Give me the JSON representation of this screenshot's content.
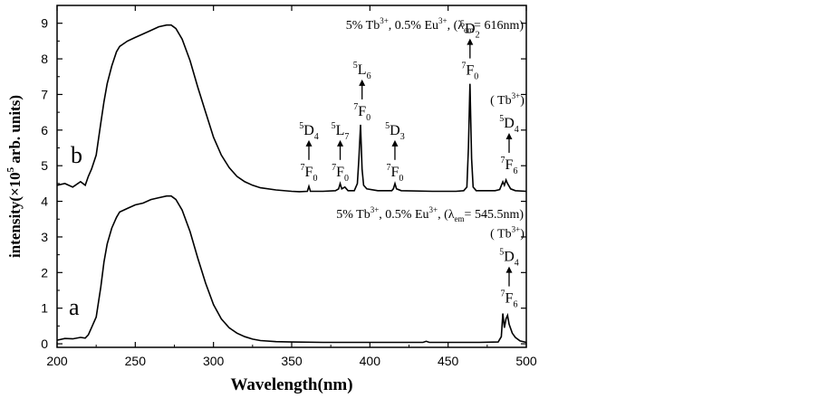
{
  "chart_data": {
    "type": "line",
    "title": "",
    "xlabel": "Wavelength(nm)",
    "ylabel_parts": [
      "intensity(×10",
      "5",
      " arb. units)"
    ],
    "xlim": [
      200,
      500
    ],
    "ylim": [
      -0.1,
      9.5
    ],
    "x_ticks": [
      200,
      250,
      300,
      350,
      400,
      450,
      500
    ],
    "y_ticks": [
      0,
      1,
      2,
      3,
      4,
      5,
      6,
      7,
      8,
      9
    ],
    "series": [
      {
        "name": "a",
        "label": "a",
        "note_parts": [
          "5% Tb",
          "3+",
          ", 0.5% Eu",
          "3+",
          ", (λ",
          "em",
          "= 545.5nm)"
        ],
        "points": [
          [
            200,
            0.1
          ],
          [
            205,
            0.15
          ],
          [
            210,
            0.14
          ],
          [
            215,
            0.18
          ],
          [
            218,
            0.16
          ],
          [
            220,
            0.25
          ],
          [
            222,
            0.45
          ],
          [
            225,
            0.75
          ],
          [
            228,
            1.6
          ],
          [
            230,
            2.3
          ],
          [
            232,
            2.8
          ],
          [
            235,
            3.25
          ],
          [
            238,
            3.55
          ],
          [
            240,
            3.7
          ],
          [
            245,
            3.8
          ],
          [
            250,
            3.9
          ],
          [
            255,
            3.95
          ],
          [
            260,
            4.05
          ],
          [
            265,
            4.1
          ],
          [
            270,
            4.15
          ],
          [
            273,
            4.15
          ],
          [
            276,
            4.05
          ],
          [
            280,
            3.75
          ],
          [
            285,
            3.15
          ],
          [
            290,
            2.4
          ],
          [
            295,
            1.7
          ],
          [
            300,
            1.1
          ],
          [
            305,
            0.7
          ],
          [
            310,
            0.45
          ],
          [
            315,
            0.3
          ],
          [
            320,
            0.2
          ],
          [
            325,
            0.13
          ],
          [
            330,
            0.09
          ],
          [
            340,
            0.06
          ],
          [
            350,
            0.05
          ],
          [
            370,
            0.04
          ],
          [
            400,
            0.04
          ],
          [
            434,
            0.04
          ],
          [
            436,
            0.07
          ],
          [
            438,
            0.04
          ],
          [
            450,
            0.04
          ],
          [
            470,
            0.04
          ],
          [
            482,
            0.05
          ],
          [
            484,
            0.2
          ],
          [
            485,
            0.85
          ],
          [
            486,
            0.45
          ],
          [
            487,
            0.7
          ],
          [
            488,
            0.8
          ],
          [
            489,
            0.55
          ],
          [
            491,
            0.3
          ],
          [
            493,
            0.18
          ],
          [
            496,
            0.08
          ],
          [
            500,
            0.04
          ]
        ]
      },
      {
        "name": "b",
        "label": "b",
        "note_parts": [
          "5% Tb",
          "3+",
          ", 0.5% Eu",
          "3+",
          ", (λ",
          "em",
          "= 616nm)"
        ],
        "points": [
          [
            200,
            4.45
          ],
          [
            205,
            4.5
          ],
          [
            210,
            4.4
          ],
          [
            215,
            4.55
          ],
          [
            218,
            4.45
          ],
          [
            220,
            4.7
          ],
          [
            222,
            4.9
          ],
          [
            225,
            5.3
          ],
          [
            228,
            6.2
          ],
          [
            230,
            6.8
          ],
          [
            232,
            7.3
          ],
          [
            235,
            7.8
          ],
          [
            238,
            8.2
          ],
          [
            240,
            8.35
          ],
          [
            245,
            8.5
          ],
          [
            250,
            8.6
          ],
          [
            255,
            8.7
          ],
          [
            260,
            8.8
          ],
          [
            265,
            8.9
          ],
          [
            270,
            8.95
          ],
          [
            273,
            8.95
          ],
          [
            276,
            8.85
          ],
          [
            280,
            8.55
          ],
          [
            285,
            7.95
          ],
          [
            290,
            7.2
          ],
          [
            295,
            6.5
          ],
          [
            300,
            5.8
          ],
          [
            305,
            5.3
          ],
          [
            310,
            4.95
          ],
          [
            315,
            4.7
          ],
          [
            320,
            4.55
          ],
          [
            325,
            4.45
          ],
          [
            330,
            4.38
          ],
          [
            340,
            4.32
          ],
          [
            350,
            4.28
          ],
          [
            355,
            4.27
          ],
          [
            360,
            4.28
          ],
          [
            361,
            4.42
          ],
          [
            362,
            4.28
          ],
          [
            370,
            4.28
          ],
          [
            378,
            4.3
          ],
          [
            380,
            4.35
          ],
          [
            381,
            4.5
          ],
          [
            382,
            4.35
          ],
          [
            384,
            4.4
          ],
          [
            386,
            4.3
          ],
          [
            390,
            4.3
          ],
          [
            392,
            4.5
          ],
          [
            393,
            5.2
          ],
          [
            394,
            6.15
          ],
          [
            395,
            4.9
          ],
          [
            396,
            4.45
          ],
          [
            398,
            4.35
          ],
          [
            405,
            4.3
          ],
          [
            414,
            4.3
          ],
          [
            415,
            4.35
          ],
          [
            416,
            4.5
          ],
          [
            417,
            4.35
          ],
          [
            420,
            4.3
          ],
          [
            440,
            4.28
          ],
          [
            455,
            4.28
          ],
          [
            460,
            4.3
          ],
          [
            462,
            4.4
          ],
          [
            463,
            5.5
          ],
          [
            464,
            7.3
          ],
          [
            465,
            5.2
          ],
          [
            466,
            4.4
          ],
          [
            468,
            4.3
          ],
          [
            475,
            4.3
          ],
          [
            480,
            4.3
          ],
          [
            483,
            4.33
          ],
          [
            485,
            4.55
          ],
          [
            486,
            4.45
          ],
          [
            487,
            4.6
          ],
          [
            488,
            4.5
          ],
          [
            490,
            4.35
          ],
          [
            493,
            4.3
          ],
          [
            500,
            4.28
          ]
        ]
      }
    ],
    "annotations": [
      {
        "pos": [
          361,
          4.4
        ],
        "upper": [
          "5",
          "D",
          "4"
        ],
        "lower": [
          "7",
          "F",
          "0"
        ]
      },
      {
        "pos": [
          381,
          4.4
        ],
        "upper": [
          "5",
          "L",
          "7"
        ],
        "lower": [
          "7",
          "F",
          "0"
        ]
      },
      {
        "pos": [
          395,
          6.1
        ],
        "upper": [
          "5",
          "L",
          "6"
        ],
        "lower": [
          "7",
          "F",
          "0"
        ]
      },
      {
        "pos": [
          416,
          4.4
        ],
        "upper": [
          "5",
          "D",
          "3"
        ],
        "lower": [
          "7",
          "F",
          "0"
        ]
      },
      {
        "pos": [
          464,
          7.25
        ],
        "upper": [
          "5",
          "D",
          "2"
        ],
        "lower": [
          "7",
          "F",
          "0"
        ]
      },
      {
        "pos": [
          489,
          4.6
        ],
        "upper": [
          "5",
          "D",
          "4"
        ],
        "lower": [
          "7",
          "F",
          "6"
        ],
        "header": [
          "( Tb",
          "3+",
          ")"
        ]
      },
      {
        "pos": [
          489,
          0.85
        ],
        "upper": [
          "5",
          "D",
          "4"
        ],
        "lower": [
          "7",
          "F",
          "6"
        ],
        "header": [
          "( Tb",
          "3+",
          ")"
        ]
      }
    ]
  }
}
